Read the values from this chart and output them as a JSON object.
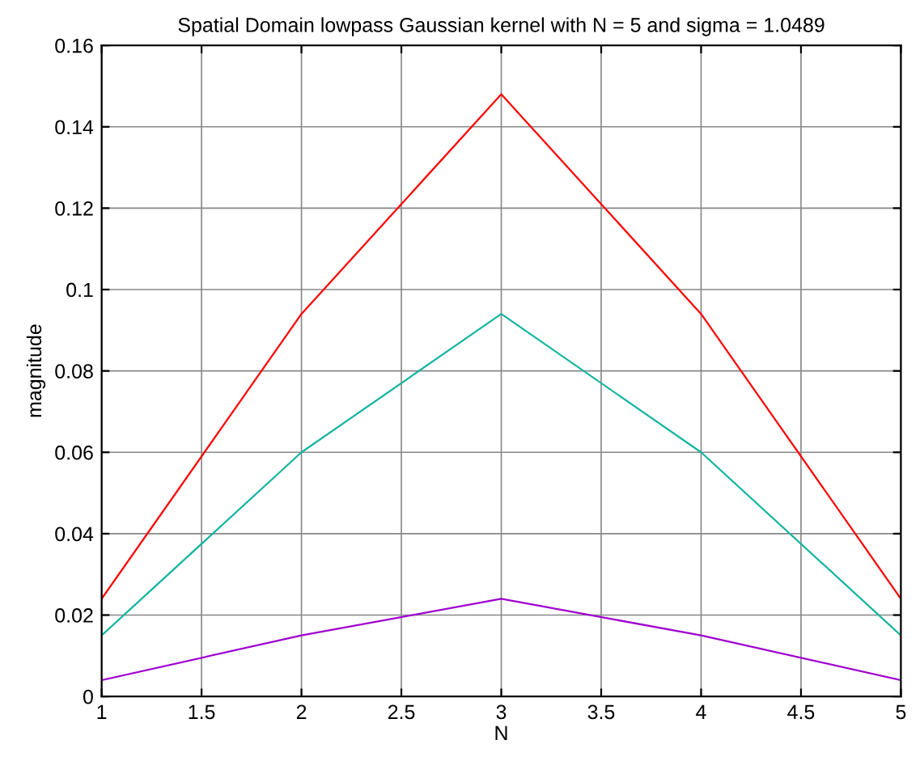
{
  "chart_data": {
    "type": "line",
    "title": "Spatial Domain lowpass Gaussian kernel with N = 5 and sigma = 1.0489",
    "xlabel": "N",
    "ylabel": "magnitude",
    "x": [
      1,
      2,
      3,
      4,
      5
    ],
    "series": [
      {
        "color": "#ff0000",
        "values": [
          0.024,
          0.094,
          0.148,
          0.094,
          0.024
        ]
      },
      {
        "color": "#14b4a0",
        "values": [
          0.015,
          0.06,
          0.094,
          0.06,
          0.015
        ]
      },
      {
        "color": "#a000d0",
        "values": [
          0.004,
          0.015,
          0.024,
          0.015,
          0.004
        ]
      }
    ],
    "xlim": [
      1,
      5
    ],
    "xticks": [
      1,
      1.5,
      2,
      2.5,
      3,
      3.5,
      4,
      4.5,
      5
    ],
    "ylim": [
      0,
      0.16
    ],
    "yticks": [
      0,
      0.02,
      0.04,
      0.06,
      0.08,
      0.1,
      0.12,
      0.14,
      0.16
    ],
    "grid": true,
    "legend": false
  }
}
